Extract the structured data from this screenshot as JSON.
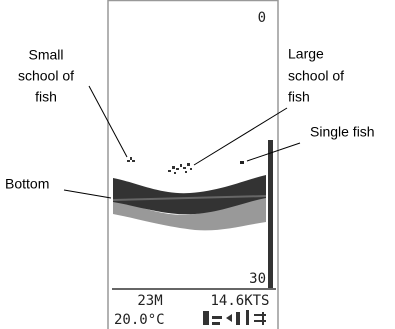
{
  "screen": {
    "depth_top": "0",
    "depth_bottom": "30",
    "depth": "23M",
    "speed": "14.6KTS",
    "temperature": "20.0°C"
  },
  "annotations": {
    "small_school": [
      "Small",
      "school of",
      "fish"
    ],
    "large_school": [
      "Large",
      "school of",
      "fish"
    ],
    "single_fish": "Single fish",
    "bottom": "Bottom"
  }
}
